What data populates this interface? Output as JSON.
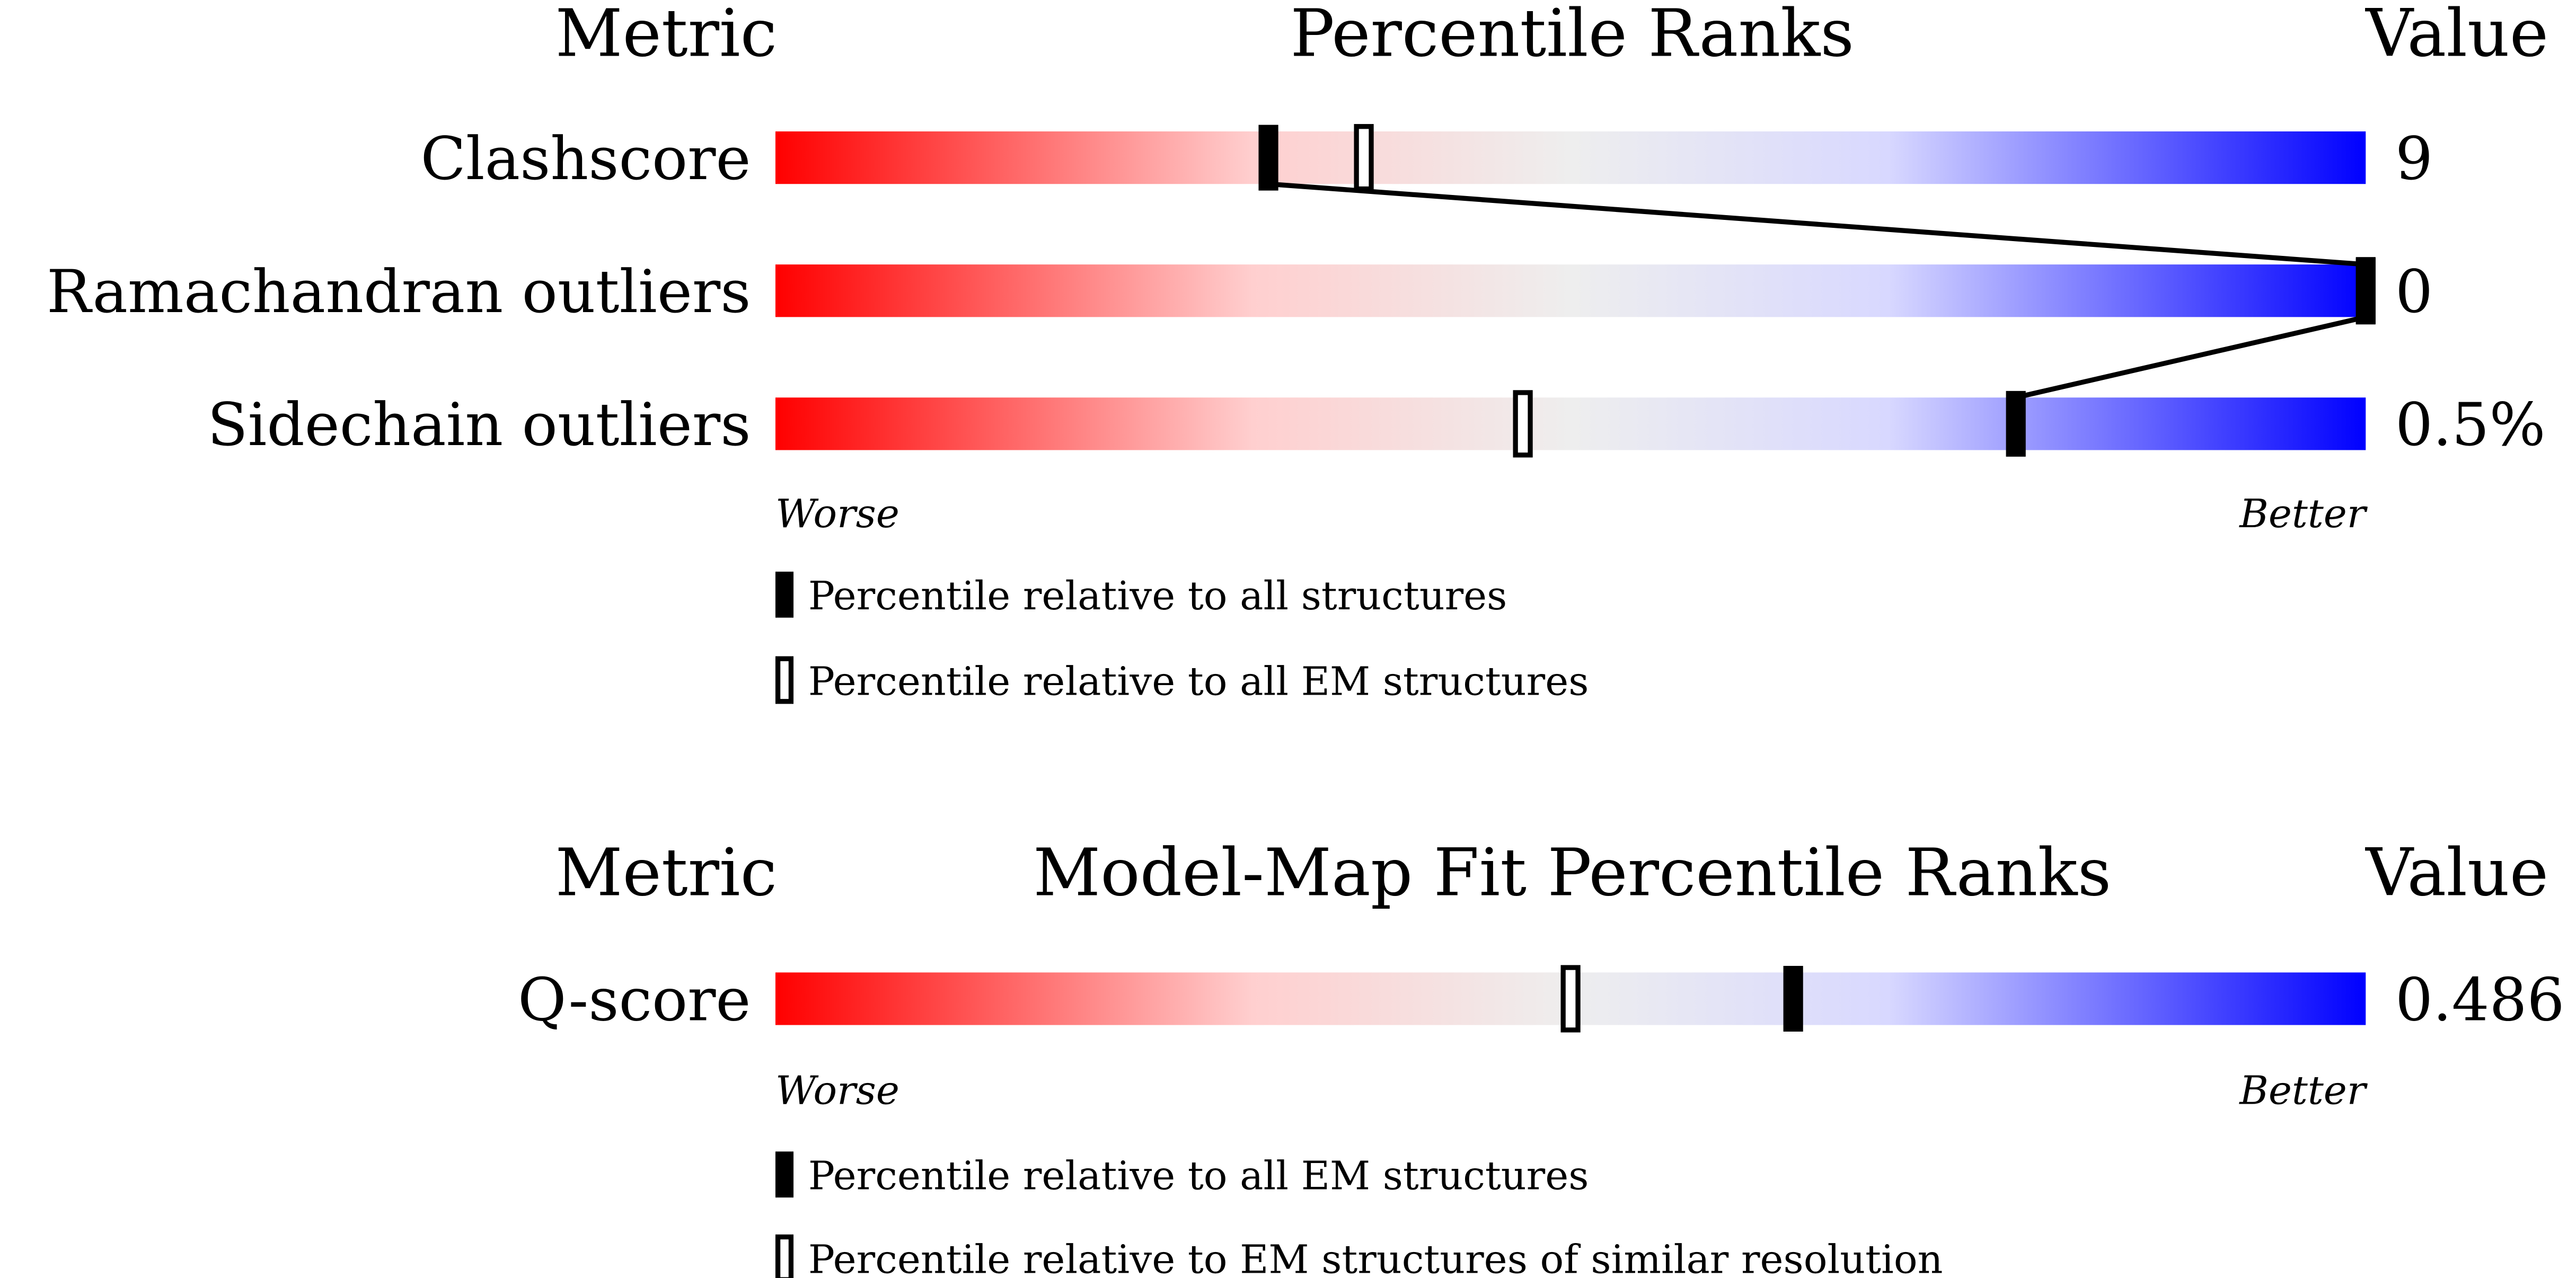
{
  "panels": [
    {
      "metric_header": "Metric",
      "title": "Percentile Ranks",
      "value_header": "Value",
      "rows": [
        {
          "metric": "Clashscore",
          "value": "9",
          "percentile_filled": 31,
          "percentile_open": 37
        },
        {
          "metric": "Ramachandran outliers",
          "value": "0",
          "percentile_filled": 100,
          "percentile_open": 100
        },
        {
          "metric": "Sidechain outliers",
          "value": "0.5%",
          "percentile_filled": 78,
          "percentile_open": 47
        }
      ],
      "worse": "Worse",
      "better": "Better",
      "legend_filled": "Percentile relative to all structures",
      "legend_open": "Percentile relative to all EM structures"
    },
    {
      "metric_header": "Metric",
      "title": "Model-Map Fit Percentile Ranks",
      "value_header": "Value",
      "rows": [
        {
          "metric": "Q-score",
          "value": "0.486",
          "percentile_filled": 64,
          "percentile_open": 50
        }
      ],
      "worse": "Worse",
      "better": "Better",
      "legend_filled": "Percentile relative to all EM structures",
      "legend_open": "Percentile relative to EM structures of similar resolution"
    }
  ]
}
